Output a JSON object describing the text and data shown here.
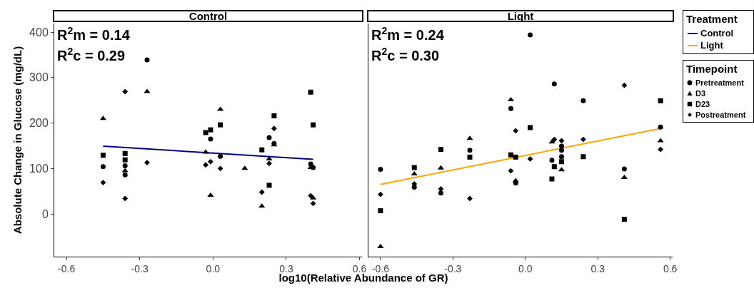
{
  "chart_data": [
    {
      "type": "scatter",
      "title": "Control",
      "ylabel": "Absolute Change in Glucose (mg/dL)",
      "xlabel": "log10(Relative Abundance of GR)",
      "legend_title": "Treatment",
      "legend": "right",
      "annotations": [
        "R$^{2}$m = 0.14",
        "R$^{2}$c = 0.29"
      ],
      "xlim": [
        -0.65,
        0.61
      ],
      "ylim": [
        -94,
        419
      ],
      "xticks": [
        -0.6,
        -0.3,
        {
          "value": 0,
          "label": "0.0"
        },
        0.3,
        0.6
      ],
      "yticks": [
        0,
        100,
        200,
        300,
        400
      ],
      "grid": false,
      "series": [
        {
          "name": "Control",
          "type": "line",
          "color": "#00008b",
          "marker": "none",
          "line_style": "solid",
          "x": [
            -0.45,
            0.41
          ],
          "values": [
            149,
            120
          ]
        },
        {
          "type": "scatter",
          "color": "#000000",
          "marker": "circle",
          "x": [
            -0.45,
            -0.36,
            -0.36,
            -0.27,
            -0.01,
            0.03,
            0.23,
            0.25,
            0.4,
            0.41
          ],
          "values": [
            104,
            106,
            86,
            339,
            165,
            127,
            168,
            155,
            110,
            102
          ]
        },
        {
          "type": "scatter",
          "color": "#000000",
          "marker": "triangle",
          "x": [
            -0.45,
            -0.36,
            -0.27,
            -0.03,
            -0.01,
            0.03,
            0.13,
            0.2,
            0.23,
            0.25,
            0.4,
            0.41
          ],
          "values": [
            210,
            95,
            269,
            136,
            41,
            230,
            100,
            17,
            121,
            152,
            102,
            35
          ]
        },
        {
          "type": "scatter",
          "color": "#000000",
          "marker": "square",
          "x": [
            -0.45,
            -0.36,
            -0.36,
            -0.03,
            -0.01,
            0.03,
            0.2,
            0.23,
            0.25,
            0.4,
            0.41
          ],
          "values": [
            129,
            133,
            119,
            179,
            185,
            196,
            141,
            63,
            216,
            268,
            196
          ]
        },
        {
          "type": "scatter",
          "color": "#000000",
          "marker": "diamond",
          "x": [
            -0.45,
            -0.36,
            -0.36,
            -0.27,
            -0.03,
            -0.01,
            0.03,
            0.2,
            0.23,
            0.25,
            0.4,
            0.41
          ],
          "values": [
            69,
            269,
            34,
            113,
            108,
            115,
            100,
            48,
            111,
            188,
            40,
            23
          ]
        }
      ]
    },
    {
      "type": "scatter",
      "title": "Light",
      "legend_title": "Timepoint",
      "legend": "right",
      "tick_labels": "x",
      "annotations": [
        "R$^{2}$m = 0.24",
        "R$^{2}$c = 0.30"
      ],
      "xlim": [
        -0.65,
        0.61
      ],
      "ylim": [
        -94,
        419
      ],
      "xticks": [
        -0.6,
        -0.3,
        {
          "value": 0,
          "label": "0.0"
        },
        0.3,
        0.6
      ],
      "yticks": [
        0,
        100,
        200,
        300,
        400
      ],
      "grid": false,
      "series": [
        {
          "name": "Light",
          "type": "line",
          "color": "#ffa500",
          "marker": "none",
          "line_style": "solid",
          "x": [
            -0.6,
            0.56
          ],
          "values": [
            65,
            188
          ]
        },
        {
          "name": "Pretreatment",
          "type": "scatter",
          "color": "#000000",
          "marker": "circle",
          "x": [
            -0.6,
            -0.46,
            -0.35,
            -0.23,
            -0.06,
            -0.04,
            0.02,
            0.11,
            0.12,
            0.15,
            0.15,
            0.15,
            0.24,
            0.41,
            0.56
          ],
          "values": [
            98,
            59,
            46,
            140,
            232,
            68,
            394,
            118,
            286,
            149,
            140,
            126,
            249,
            99,
            191
          ]
        },
        {
          "name": "D3",
          "type": "scatter",
          "color": "#000000",
          "marker": "triangle",
          "x": [
            -0.6,
            -0.46,
            -0.35,
            -0.23,
            -0.06,
            -0.04,
            0.11,
            0.15,
            0.41,
            0.56
          ],
          "values": [
            -72,
            88,
            101,
            166,
            251,
            73,
            158,
            97,
            80,
            161
          ]
        },
        {
          "name": "D23",
          "type": "scatter",
          "color": "#000000",
          "marker": "square",
          "x": [
            -0.6,
            -0.46,
            -0.35,
            -0.23,
            -0.06,
            -0.04,
            0.02,
            0.11,
            0.12,
            0.15,
            0.24,
            0.41,
            0.56
          ],
          "values": [
            7,
            102,
            142,
            125,
            130,
            125,
            190,
            77,
            104,
            115,
            126,
            -12,
            249
          ]
        },
        {
          "name": "Postreatment",
          "type": "scatter",
          "color": "#000000",
          "marker": "diamond",
          "x": [
            -0.6,
            -0.46,
            -0.35,
            -0.23,
            -0.06,
            -0.04,
            0.02,
            0.12,
            0.15,
            0.24,
            0.41,
            0.56
          ],
          "values": [
            43,
            66,
            55,
            34,
            95,
            183,
            121,
            164,
            161,
            164,
            283,
            142
          ]
        }
      ]
    }
  ]
}
